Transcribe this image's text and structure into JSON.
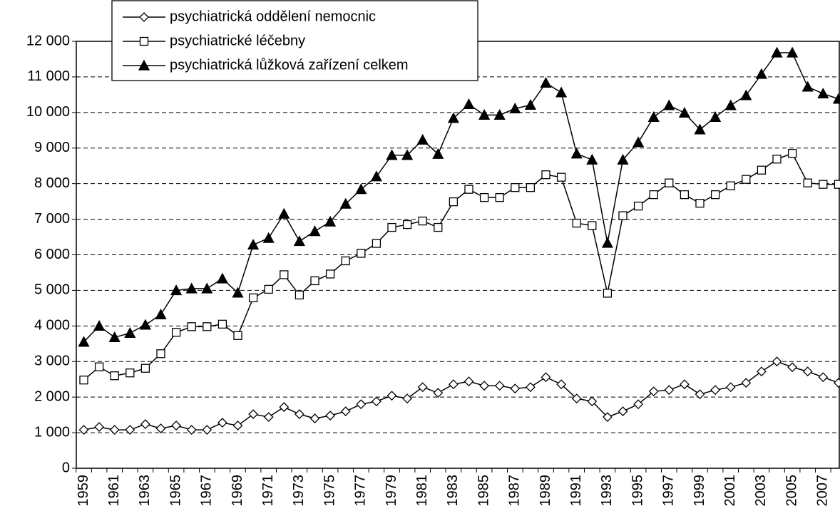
{
  "chart_data": {
    "type": "line",
    "categories": [
      "1959",
      null,
      "1961",
      null,
      "1963",
      null,
      "1965",
      null,
      "1967",
      null,
      "1969",
      null,
      "1971",
      null,
      "1973",
      null,
      "1975",
      null,
      "1977",
      null,
      "1979",
      null,
      "1981",
      null,
      "1983",
      null,
      "1985",
      null,
      "1987",
      null,
      "1989",
      null,
      "1991",
      null,
      "1993",
      null,
      "1995",
      null,
      "1997",
      null,
      "1999",
      null,
      "2001",
      null,
      "2003",
      null,
      "2005",
      null,
      "2007",
      null
    ],
    "series": [
      {
        "name": "psychiatrická oddělení nemocnic",
        "color": "#000000",
        "marker": "diamond",
        "marker_fill": "#ffffff",
        "values": [
          1080,
          1160,
          1080,
          1080,
          1240,
          1120,
          1200,
          1080,
          1080,
          1280,
          1200,
          1520,
          1440,
          1720,
          1520,
          1400,
          1480,
          1600,
          1800,
          1880,
          2040,
          1960,
          2280,
          2120,
          2360,
          2440,
          2320,
          2320,
          2240,
          2280,
          2560,
          2360,
          1960,
          1880,
          1440,
          1600,
          1800,
          2160,
          2200,
          2360,
          2080,
          2200,
          2280,
          2400,
          2720,
          3000,
          2840,
          2720,
          2560,
          2400
        ]
      },
      {
        "name": "psychiatrické léčebny",
        "color": "#000000",
        "marker": "square",
        "marker_fill": "#ffffff",
        "values": [
          2480,
          2850,
          2600,
          2680,
          2810,
          3220,
          3820,
          3980,
          3980,
          4050,
          3730,
          4790,
          5030,
          5440,
          4870,
          5270,
          5460,
          5830,
          6040,
          6320,
          6770,
          6850,
          6950,
          6770,
          7490,
          7840,
          7610,
          7610,
          7890,
          7890,
          8250,
          8180,
          6890,
          6820,
          4920,
          7100,
          7370,
          7690,
          8020,
          7690,
          7450,
          7690,
          7940,
          8120,
          8380,
          8690,
          8850,
          8020,
          7980,
          7980
        ]
      },
      {
        "name": "psychiatrická lůžková zařízení celkem",
        "color": "#000000",
        "marker": "triangle",
        "marker_fill": "#000000",
        "values": [
          3550,
          4000,
          3680,
          3800,
          4030,
          4320,
          5000,
          5050,
          5050,
          5330,
          4930,
          6280,
          6470,
          7150,
          6380,
          6660,
          6930,
          7430,
          7840,
          8200,
          8800,
          8800,
          9230,
          8830,
          9840,
          10230,
          9930,
          9930,
          10110,
          10210,
          10830,
          10560,
          8840,
          8670,
          6330,
          8670,
          9160,
          9870,
          10200,
          9990,
          9520,
          9870,
          10200,
          10480,
          11080,
          11680,
          11680,
          10720,
          10530,
          10380
        ]
      }
    ],
    "ylim": [
      0,
      12000
    ],
    "yticks": [
      0,
      {
        "value": 1000,
        "label": "1 000"
      },
      {
        "value": 2000,
        "label": "2 000"
      },
      {
        "value": 3000,
        "label": "3 000"
      },
      {
        "value": 4000,
        "label": "4 000"
      },
      {
        "value": 5000,
        "label": "5 000"
      },
      {
        "value": 6000,
        "label": "6 000"
      },
      {
        "value": 7000,
        "label": "7 000"
      },
      {
        "value": 8000,
        "label": "8 000"
      },
      {
        "value": 9000,
        "label": "9 000"
      },
      {
        "value": 10000,
        "label": "10 000"
      },
      {
        "value": 11000,
        "label": "11 000"
      },
      {
        "value": 12000,
        "label": "12 000"
      }
    ],
    "grid": true,
    "legend": "top-left"
  }
}
